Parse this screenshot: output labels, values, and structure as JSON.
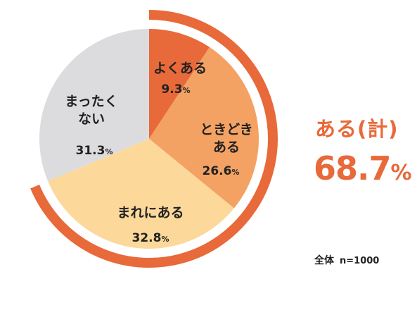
{
  "chart_data": {
    "type": "pie",
    "categories": [
      "よくある",
      "ときどきある",
      "まれにある",
      "まったくない"
    ],
    "values": [
      9.3,
      26.6,
      32.8,
      31.3
    ],
    "value_unit": "%",
    "colors": [
      "#e8693a",
      "#f4a263",
      "#fcd99a",
      "#dcdcde"
    ],
    "highlight_arc": {
      "label": "ある(計)",
      "value": 68.7,
      "unit": "%",
      "color": "#e8693a"
    },
    "sample": {
      "label": "全体",
      "n": "n=1000"
    }
  }
}
